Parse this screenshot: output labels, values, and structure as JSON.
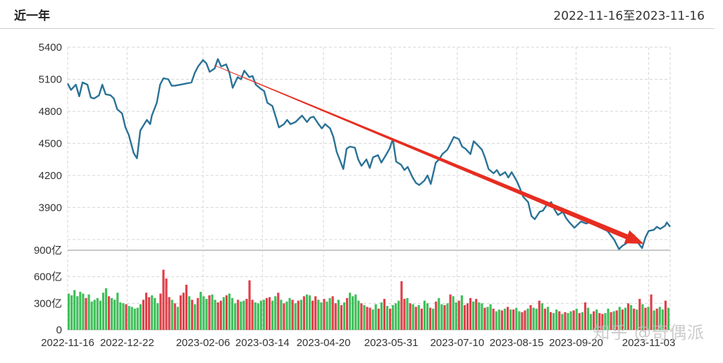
{
  "header": {
    "title": "近一年",
    "date_range": "2022-11-16至2023-11-16"
  },
  "watermark": "知乎 @奇偶派",
  "colors": {
    "line": "#2a7296",
    "trend_arrow": "#e62d20",
    "vol_up": "#e0404a",
    "vol_down": "#3fbf5a",
    "grid": "#d6d6d6"
  },
  "chart_data": [
    {
      "type": "line",
      "title": "",
      "x_tick_labels": [
        "2022-11-16",
        "2022-12-22",
        "2023-02-06",
        "2023-03-14",
        "2023-04-20",
        "2023-05-31",
        "2023-07-10",
        "2023-08-15",
        "2023-09-20",
        "2023-11-03"
      ],
      "x_range": [
        "2022-11-16",
        "2023-11-16"
      ],
      "ylim": [
        3500,
        5400
      ],
      "y_tick_labels": [
        "5400",
        "5100",
        "4800",
        "4500",
        "4200",
        "3900"
      ],
      "grid": true,
      "series": [
        {
          "values": [
            [
              "2022-11-16",
              5060
            ],
            [
              "2022-11-18",
              5000
            ],
            [
              "2022-11-21",
              5050
            ],
            [
              "2022-11-23",
              4940
            ],
            [
              "2022-11-25",
              5070
            ],
            [
              "2022-11-28",
              5050
            ],
            [
              "2022-11-30",
              4930
            ],
            [
              "2022-12-02",
              4920
            ],
            [
              "2022-12-05",
              4950
            ],
            [
              "2022-12-07",
              5050
            ],
            [
              "2022-12-09",
              4960
            ],
            [
              "2022-12-12",
              4950
            ],
            [
              "2022-12-14",
              4920
            ],
            [
              "2022-12-16",
              4820
            ],
            [
              "2022-12-19",
              4780
            ],
            [
              "2022-12-21",
              4650
            ],
            [
              "2022-12-23",
              4580
            ],
            [
              "2022-12-26",
              4410
            ],
            [
              "2022-12-28",
              4360
            ],
            [
              "2022-12-30",
              4620
            ],
            [
              "2023-01-03",
              4720
            ],
            [
              "2023-01-05",
              4680
            ],
            [
              "2023-01-06",
              4760
            ],
            [
              "2023-01-09",
              4880
            ],
            [
              "2023-01-11",
              5050
            ],
            [
              "2023-01-13",
              5110
            ],
            [
              "2023-01-16",
              5100
            ],
            [
              "2023-01-18",
              5040
            ],
            [
              "2023-01-20",
              5040
            ],
            [
              "2023-01-30",
              5070
            ],
            [
              "2023-02-01",
              5160
            ],
            [
              "2023-02-03",
              5220
            ],
            [
              "2023-02-06",
              5280
            ],
            [
              "2023-02-08",
              5250
            ],
            [
              "2023-02-10",
              5170
            ],
            [
              "2023-02-13",
              5200
            ],
            [
              "2023-02-15",
              5290
            ],
            [
              "2023-02-17",
              5220
            ],
            [
              "2023-02-20",
              5240
            ],
            [
              "2023-02-22",
              5160
            ],
            [
              "2023-02-24",
              5020
            ],
            [
              "2023-02-27",
              5120
            ],
            [
              "2023-03-01",
              5100
            ],
            [
              "2023-03-03",
              5180
            ],
            [
              "2023-03-06",
              5120
            ],
            [
              "2023-03-08",
              5130
            ],
            [
              "2023-03-10",
              5050
            ],
            [
              "2023-03-13",
              5010
            ],
            [
              "2023-03-15",
              4990
            ],
            [
              "2023-03-17",
              4880
            ],
            [
              "2023-03-20",
              4850
            ],
            [
              "2023-03-22",
              4750
            ],
            [
              "2023-03-24",
              4650
            ],
            [
              "2023-03-27",
              4680
            ],
            [
              "2023-03-29",
              4720
            ],
            [
              "2023-03-31",
              4680
            ],
            [
              "2023-04-03",
              4700
            ],
            [
              "2023-04-05",
              4730
            ],
            [
              "2023-04-07",
              4760
            ],
            [
              "2023-04-10",
              4700
            ],
            [
              "2023-04-12",
              4740
            ],
            [
              "2023-04-14",
              4750
            ],
            [
              "2023-04-17",
              4680
            ],
            [
              "2023-04-19",
              4640
            ],
            [
              "2023-04-21",
              4680
            ],
            [
              "2023-04-24",
              4640
            ],
            [
              "2023-04-26",
              4560
            ],
            [
              "2023-04-28",
              4420
            ],
            [
              "2023-05-02",
              4260
            ],
            [
              "2023-05-04",
              4450
            ],
            [
              "2023-05-06",
              4470
            ],
            [
              "2023-05-09",
              4460
            ],
            [
              "2023-05-11",
              4350
            ],
            [
              "2023-05-13",
              4290
            ],
            [
              "2023-05-16",
              4350
            ],
            [
              "2023-05-18",
              4270
            ],
            [
              "2023-05-20",
              4370
            ],
            [
              "2023-05-23",
              4390
            ],
            [
              "2023-05-25",
              4320
            ],
            [
              "2023-05-27",
              4370
            ],
            [
              "2023-05-30",
              4450
            ],
            [
              "2023-06-01",
              4540
            ],
            [
              "2023-06-03",
              4330
            ],
            [
              "2023-06-06",
              4300
            ],
            [
              "2023-06-08",
              4250
            ],
            [
              "2023-06-10",
              4280
            ],
            [
              "2023-06-13",
              4180
            ],
            [
              "2023-06-15",
              4130
            ],
            [
              "2023-06-17",
              4110
            ],
            [
              "2023-06-20",
              4150
            ],
            [
              "2023-06-22",
              4200
            ],
            [
              "2023-06-24",
              4120
            ],
            [
              "2023-06-27",
              4320
            ],
            [
              "2023-06-29",
              4350
            ],
            [
              "2023-07-01",
              4400
            ],
            [
              "2023-07-04",
              4440
            ],
            [
              "2023-07-06",
              4500
            ],
            [
              "2023-07-08",
              4560
            ],
            [
              "2023-07-11",
              4540
            ],
            [
              "2023-07-13",
              4470
            ],
            [
              "2023-07-15",
              4450
            ],
            [
              "2023-07-18",
              4400
            ],
            [
              "2023-07-20",
              4520
            ],
            [
              "2023-07-22",
              4490
            ],
            [
              "2023-07-25",
              4440
            ],
            [
              "2023-07-27",
              4360
            ],
            [
              "2023-07-29",
              4260
            ],
            [
              "2023-08-01",
              4220
            ],
            [
              "2023-08-03",
              4250
            ],
            [
              "2023-08-05",
              4200
            ],
            [
              "2023-08-08",
              4230
            ],
            [
              "2023-08-10",
              4180
            ],
            [
              "2023-08-12",
              4230
            ],
            [
              "2023-08-15",
              4150
            ],
            [
              "2023-08-17",
              4080
            ],
            [
              "2023-08-19",
              4000
            ],
            [
              "2023-08-22",
              3950
            ],
            [
              "2023-08-24",
              3820
            ],
            [
              "2023-08-26",
              3790
            ],
            [
              "2023-08-29",
              3860
            ],
            [
              "2023-08-31",
              3870
            ],
            [
              "2023-09-02",
              3920
            ],
            [
              "2023-09-05",
              3950
            ],
            [
              "2023-09-07",
              3880
            ],
            [
              "2023-09-09",
              3830
            ],
            [
              "2023-09-12",
              3860
            ],
            [
              "2023-09-14",
              3800
            ],
            [
              "2023-09-16",
              3760
            ],
            [
              "2023-09-19",
              3710
            ],
            [
              "2023-09-21",
              3740
            ],
            [
              "2023-09-23",
              3770
            ],
            [
              "2023-09-26",
              3750
            ],
            [
              "2023-09-28",
              3760
            ],
            [
              "2023-10-09",
              3680
            ],
            [
              "2023-10-11",
              3640
            ],
            [
              "2023-10-13",
              3600
            ],
            [
              "2023-10-16",
              3510
            ],
            [
              "2023-10-18",
              3540
            ],
            [
              "2023-10-20",
              3560
            ],
            [
              "2023-10-23",
              3600
            ],
            [
              "2023-10-25",
              3640
            ],
            [
              "2023-10-27",
              3580
            ],
            [
              "2023-10-30",
              3520
            ],
            [
              "2023-11-01",
              3620
            ],
            [
              "2023-11-03",
              3680
            ],
            [
              "2023-11-06",
              3690
            ],
            [
              "2023-11-08",
              3720
            ],
            [
              "2023-11-10",
              3700
            ],
            [
              "2023-11-13",
              3730
            ],
            [
              "2023-11-14",
              3760
            ],
            [
              "2023-11-16",
              3720
            ]
          ]
        }
      ],
      "annotations": [
        {
          "type": "trend-arrow",
          "from": [
            "2023-02-13",
            5230
          ],
          "to": [
            "2023-10-31",
            3560
          ]
        }
      ]
    },
    {
      "type": "bar",
      "title": "",
      "ylabel": "亿",
      "ylim": [
        0,
        900
      ],
      "y_tick_labels": [
        "900亿",
        "600亿",
        "300亿",
        "0"
      ],
      "grid": true,
      "series_colors": "red = up day, green = down day",
      "values": [
        410,
        390,
        450,
        380,
        430,
        410,
        360,
        400,
        320,
        340,
        360,
        330,
        420,
        470,
        380,
        360,
        340,
        420,
        310,
        300,
        290,
        270,
        260,
        240,
        250,
        290,
        340,
        420,
        370,
        390,
        360,
        300,
        410,
        680,
        580,
        370,
        340,
        300,
        260,
        390,
        420,
        510,
        380,
        340,
        290,
        360,
        430,
        380,
        350,
        390,
        400,
        340,
        310,
        330,
        370,
        390,
        410,
        360,
        300,
        340,
        320,
        330,
        350,
        560,
        340,
        310,
        300,
        330,
        340,
        360,
        370,
        330,
        380,
        420,
        340,
        300,
        320,
        360,
        340,
        300,
        330,
        340,
        380,
        400,
        390,
        330,
        380,
        340,
        310,
        350,
        320,
        360,
        380,
        300,
        340,
        280,
        310,
        360,
        420,
        380,
        400,
        330,
        300,
        280,
        260,
        250,
        230,
        290,
        240,
        310,
        350,
        270,
        240,
        280,
        300,
        330,
        550,
        350,
        360,
        300,
        290,
        260,
        280,
        240,
        330,
        300,
        250,
        240,
        320,
        360,
        290,
        280,
        300,
        400,
        380,
        310,
        330,
        390,
        280,
        300,
        360,
        320,
        350,
        310,
        300,
        250,
        260,
        290,
        240,
        210,
        230,
        220,
        240,
        260,
        230,
        230,
        250,
        210,
        200,
        220,
        240,
        280,
        250,
        240,
        330,
        300,
        240,
        260,
        200,
        190,
        230,
        210,
        180,
        200,
        190,
        210,
        220,
        240,
        190,
        200,
        310,
        250,
        180,
        210,
        230,
        190,
        180,
        190,
        240,
        200,
        210,
        220,
        260,
        230,
        250,
        300,
        280,
        240,
        230,
        350,
        290,
        250,
        260,
        400,
        220,
        240,
        260,
        230,
        330,
        250
      ],
      "up": [
        false,
        false,
        false,
        false,
        false,
        false,
        true,
        false,
        false,
        false,
        false,
        false,
        false,
        false,
        true,
        false,
        false,
        false,
        false,
        false,
        true,
        false,
        false,
        false,
        false,
        false,
        true,
        true,
        true,
        false,
        false,
        false,
        true,
        true,
        true,
        true,
        false,
        true,
        false,
        true,
        true,
        true,
        false,
        true,
        false,
        true,
        false,
        false,
        false,
        true,
        false,
        false,
        true,
        true,
        false,
        true,
        false,
        false,
        false,
        true,
        false,
        false,
        true,
        true,
        true,
        false,
        false,
        false,
        false,
        true,
        true,
        false,
        false,
        true,
        false,
        true,
        false,
        false,
        true,
        false,
        true,
        false,
        true,
        false,
        false,
        true,
        true,
        false,
        false,
        true,
        false,
        false,
        true,
        true,
        false,
        true,
        false,
        true,
        false,
        false,
        false,
        false,
        true,
        false,
        true,
        true,
        false,
        false,
        true,
        false,
        true,
        false,
        true,
        false,
        false,
        false,
        true,
        true,
        false,
        true,
        false,
        true,
        false,
        true,
        false,
        false,
        true,
        false,
        true,
        false,
        false,
        true,
        false,
        true,
        false,
        false,
        true,
        false,
        true,
        true,
        true,
        false,
        true,
        false,
        false,
        true,
        false,
        false,
        true,
        false,
        false,
        true,
        false,
        true,
        false,
        true,
        false,
        false,
        true,
        true,
        false,
        true,
        false,
        false,
        true,
        false,
        true,
        false,
        true,
        false,
        false,
        true,
        false,
        true,
        false,
        false,
        true,
        false,
        true,
        false,
        true,
        false,
        false,
        true,
        false,
        true,
        true,
        false,
        false,
        true,
        false,
        true,
        false,
        true,
        false,
        true,
        false,
        true,
        false,
        true,
        false,
        true,
        false,
        true,
        false,
        true,
        false,
        false,
        true,
        false
      ]
    }
  ]
}
